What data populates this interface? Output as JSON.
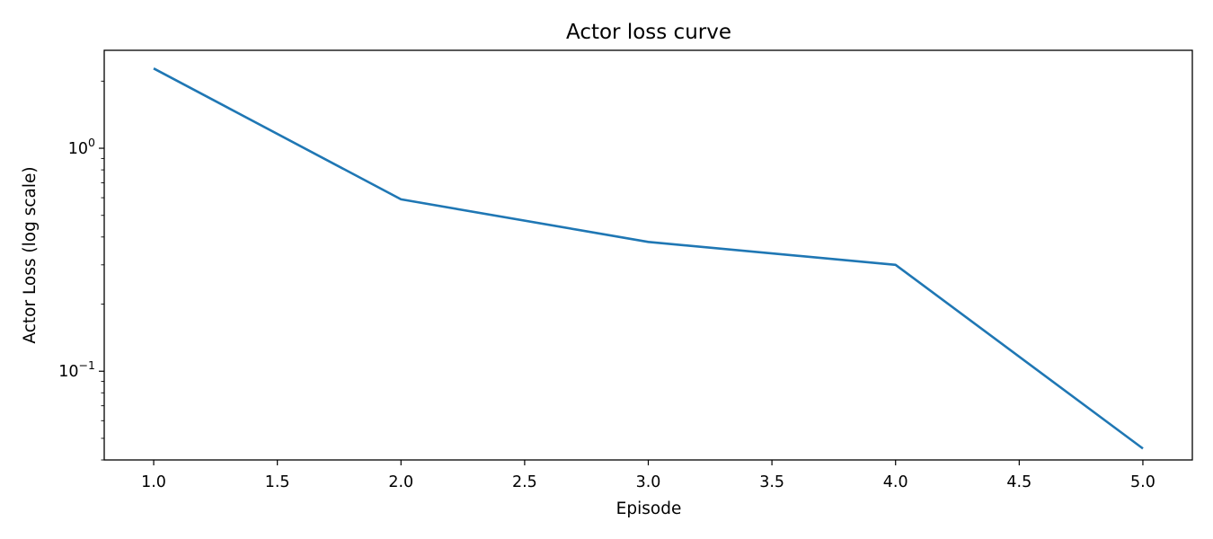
{
  "chart_data": {
    "type": "line",
    "title": "Actor loss curve",
    "xlabel": "Episode",
    "ylabel": "Actor Loss (log scale)",
    "y_scale": "log",
    "xlim": [
      0.8,
      5.2
    ],
    "ylim": [
      0.04,
      2.75
    ],
    "x_ticks": [
      {
        "value": 1.0,
        "label": "1.0"
      },
      {
        "value": 1.5,
        "label": "1.5"
      },
      {
        "value": 2.0,
        "label": "2.0"
      },
      {
        "value": 2.5,
        "label": "2.5"
      },
      {
        "value": 3.0,
        "label": "3.0"
      },
      {
        "value": 3.5,
        "label": "3.5"
      },
      {
        "value": 4.0,
        "label": "4.0"
      },
      {
        "value": 4.5,
        "label": "4.5"
      },
      {
        "value": 5.0,
        "label": "5.0"
      }
    ],
    "y_ticks": [
      {
        "value": 1,
        "base": "10",
        "exp": "0"
      },
      {
        "value": 0.1,
        "base": "10",
        "exp": "−1"
      }
    ],
    "grid": false,
    "legend": "none",
    "series": [
      {
        "color": "#1f77b4",
        "x": [
          1,
          2,
          3,
          4,
          5
        ],
        "y": [
          2.28,
          0.59,
          0.38,
          0.3,
          0.045
        ]
      }
    ]
  }
}
